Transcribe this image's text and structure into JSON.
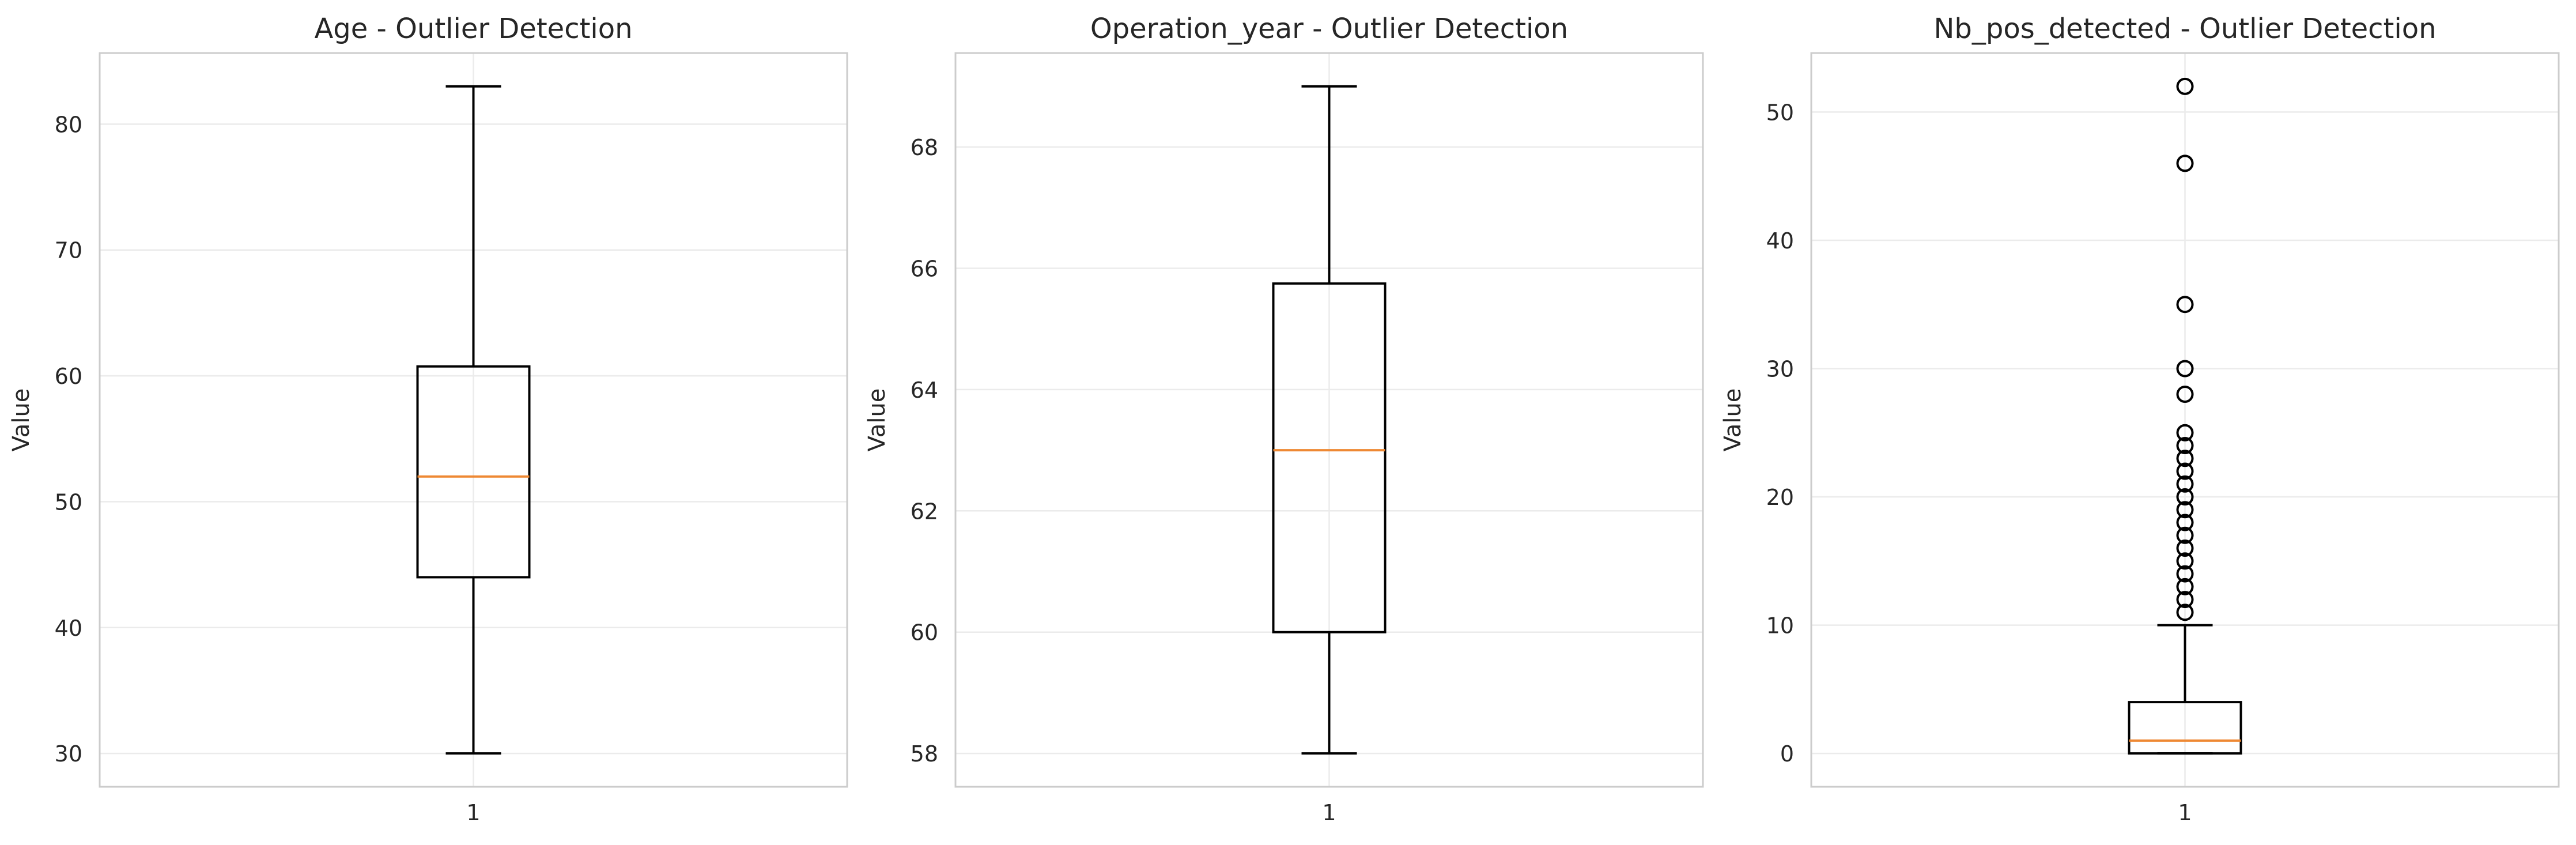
{
  "chart_data": [
    {
      "type": "box",
      "title": "Age - Outlier Detection",
      "xlabel": "",
      "ylabel": "Value",
      "categories": [
        "1"
      ],
      "ylim": [
        27.35,
        85.65
      ],
      "yticks": [
        30,
        40,
        50,
        60,
        70,
        80
      ],
      "grid": true,
      "box": {
        "whisker_low": 30,
        "q1": 44,
        "median": 52,
        "q3": 60.75,
        "whisker_high": 83
      },
      "outliers": []
    },
    {
      "type": "box",
      "title": "Operation_year - Outlier Detection",
      "xlabel": "",
      "ylabel": "Value",
      "categories": [
        "1"
      ],
      "ylim": [
        57.45,
        69.55
      ],
      "yticks": [
        58,
        60,
        62,
        64,
        66,
        68
      ],
      "grid": true,
      "box": {
        "whisker_low": 58,
        "q1": 60,
        "median": 63,
        "q3": 65.75,
        "whisker_high": 69
      },
      "outliers": []
    },
    {
      "type": "box",
      "title": "Nb_pos_detected - Outlier Detection",
      "xlabel": "",
      "ylabel": "Value",
      "categories": [
        "1"
      ],
      "ylim": [
        -2.6,
        54.6
      ],
      "yticks": [
        0,
        10,
        20,
        30,
        40,
        50
      ],
      "grid": true,
      "box": {
        "whisker_low": 0,
        "q1": 0,
        "median": 1,
        "q3": 4,
        "whisker_high": 10
      },
      "outliers": [
        11,
        12,
        13,
        14,
        15,
        16,
        17,
        18,
        19,
        20,
        21,
        22,
        23,
        24,
        25,
        28,
        30,
        35,
        46,
        52
      ]
    }
  ],
  "colors": {
    "box": "#000000",
    "median": "#ee8833",
    "grid": "#ebebeb",
    "spine": "#cccccc",
    "text": "#262626"
  }
}
